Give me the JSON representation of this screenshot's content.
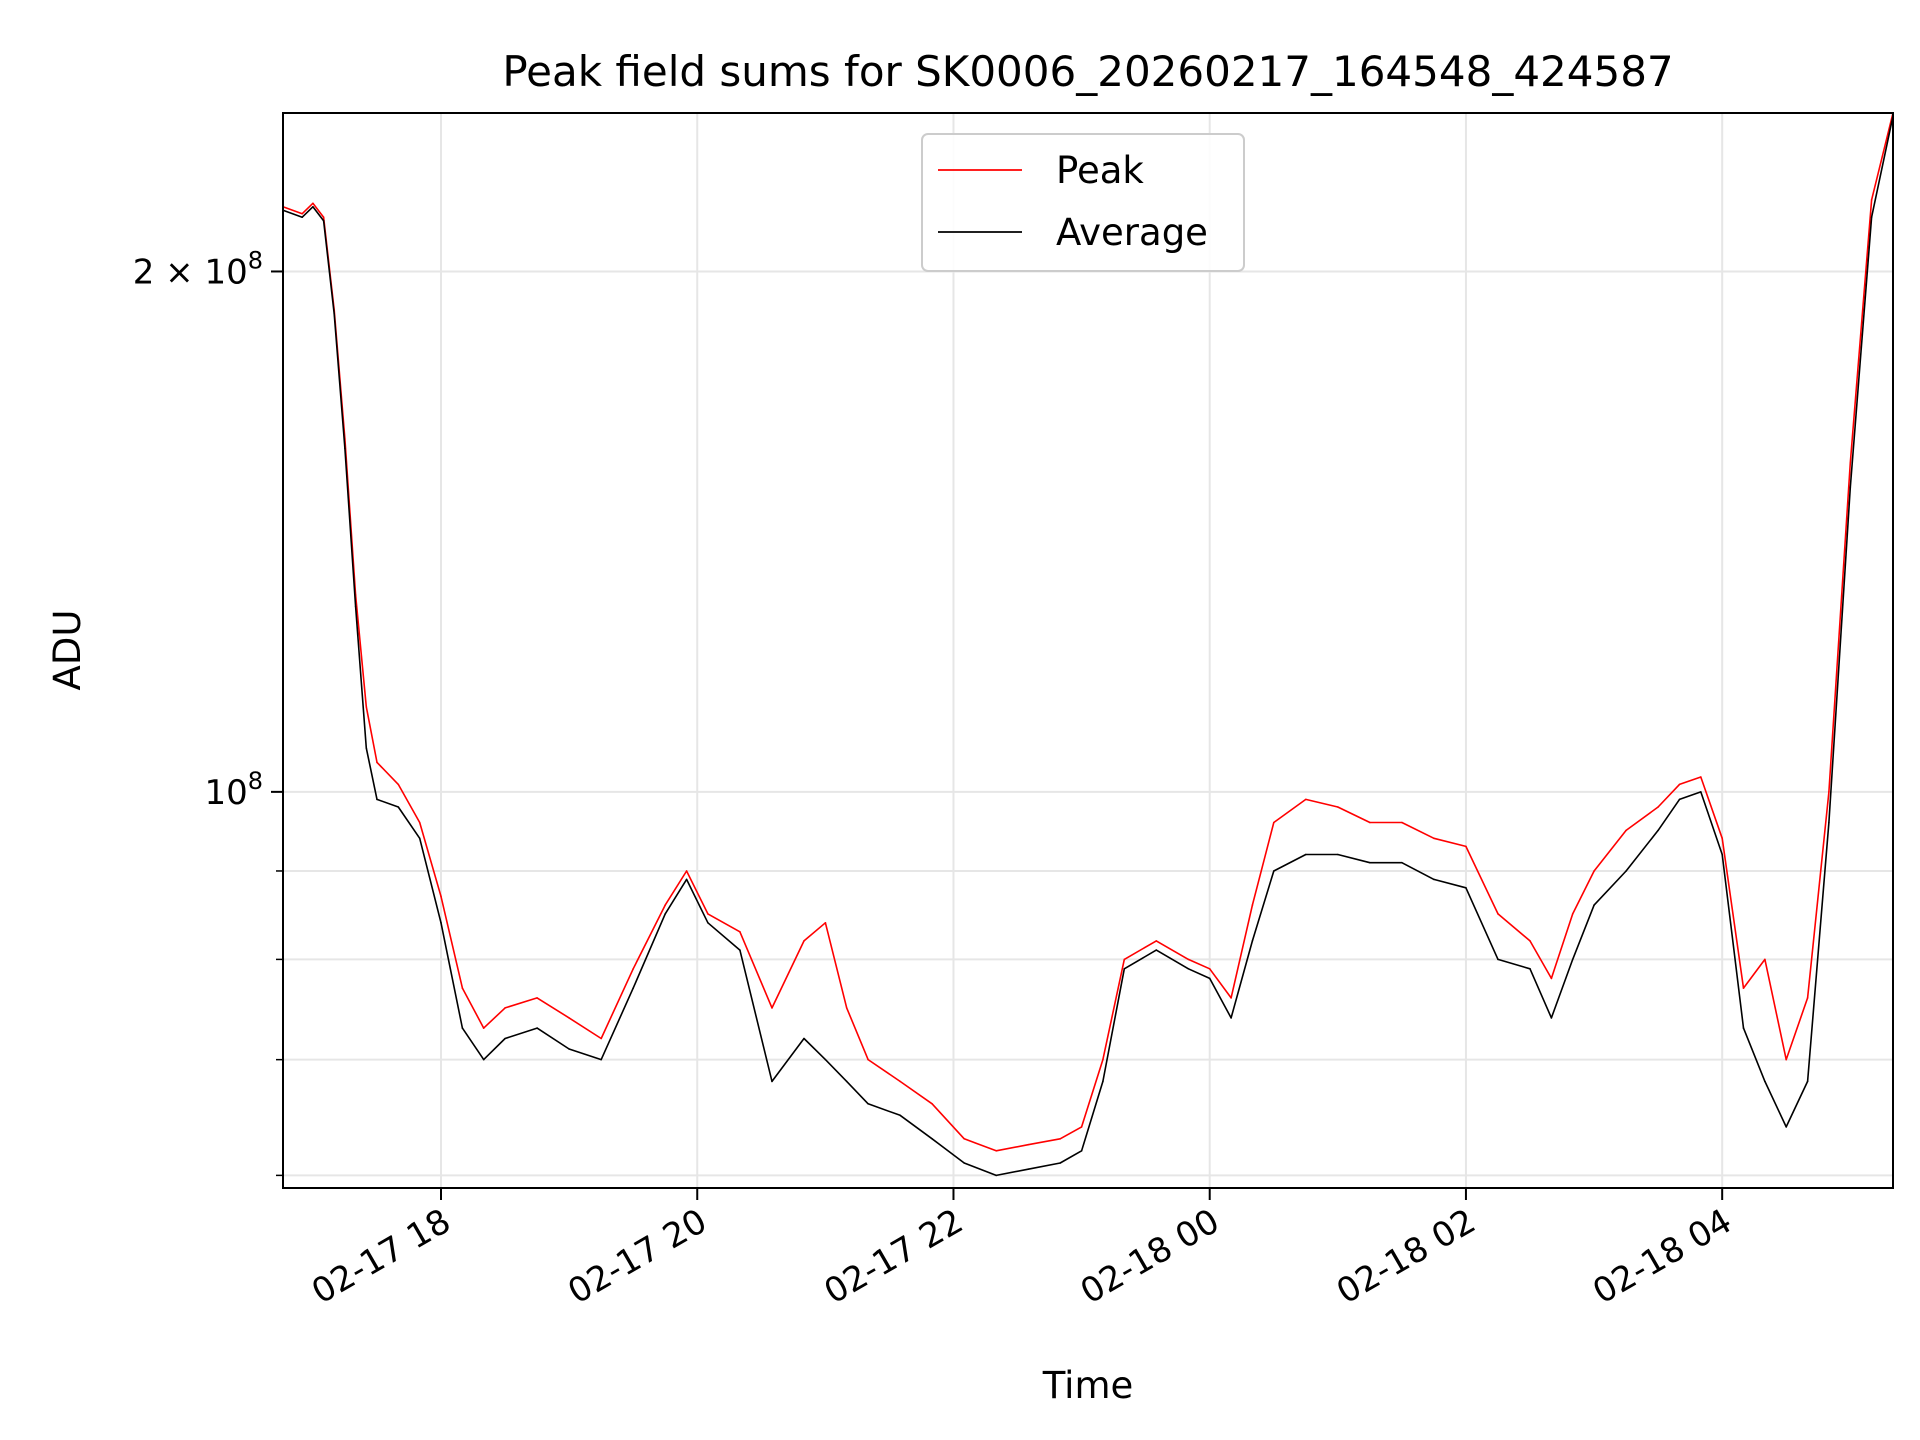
{
  "chart_data": {
    "type": "line",
    "title": "Peak field sums for SK0006_20260217_164548_424587",
    "xlabel": "Time",
    "ylabel": "ADU",
    "y_scale": "log",
    "grid": true,
    "legend_position": "top-center",
    "xlim": [
      "02-17 16:46",
      "02-18 05:20"
    ],
    "ylim": [
      59000000,
      247000000
    ],
    "x_ticks": [
      "02-17 18",
      "02-17 20",
      "02-17 22",
      "02-18 00",
      "02-18 02",
      "02-18 04"
    ],
    "y_major_ticks": [
      {
        "value": 100000000,
        "base": "10",
        "exp": "8",
        "coef": ""
      },
      {
        "value": 200000000,
        "base": "10",
        "exp": "8",
        "coef": "2"
      }
    ],
    "y_minor_gridlines": [
      60000000,
      70000000,
      80000000,
      90000000
    ],
    "series": [
      {
        "name": "Peak",
        "color": "#ff0000",
        "x": [
          "02-17 16:46",
          "02-17 16:55",
          "02-17 17:00",
          "02-17 17:05",
          "02-17 17:10",
          "02-17 17:15",
          "02-17 17:20",
          "02-17 17:25",
          "02-17 17:30",
          "02-17 17:40",
          "02-17 17:50",
          "02-17 18:00",
          "02-17 18:10",
          "02-17 18:20",
          "02-17 18:30",
          "02-17 18:45",
          "02-17 19:00",
          "02-17 19:15",
          "02-17 19:30",
          "02-17 19:45",
          "02-17 19:55",
          "02-17 20:05",
          "02-17 20:20",
          "02-17 20:35",
          "02-17 20:50",
          "02-17 21:00",
          "02-17 21:10",
          "02-17 21:20",
          "02-17 21:35",
          "02-17 21:50",
          "02-17 22:05",
          "02-17 22:20",
          "02-17 22:35",
          "02-17 22:50",
          "02-17 23:00",
          "02-17 23:10",
          "02-17 23:20",
          "02-17 23:35",
          "02-17 23:50",
          "02-18 00:00",
          "02-18 00:10",
          "02-18 00:20",
          "02-18 00:30",
          "02-18 00:45",
          "02-18 01:00",
          "02-18 01:15",
          "02-18 01:30",
          "02-18 01:45",
          "02-18 02:00",
          "02-18 02:15",
          "02-18 02:30",
          "02-18 02:40",
          "02-18 02:50",
          "02-18 03:00",
          "02-18 03:15",
          "02-18 03:30",
          "02-18 03:40",
          "02-18 03:50",
          "02-18 04:00",
          "02-18 04:10",
          "02-18 04:20",
          "02-18 04:30",
          "02-18 04:40",
          "02-18 04:50",
          "02-18 05:00",
          "02-18 05:10",
          "02-18 05:20"
        ],
        "values": [
          218000000,
          216000000,
          219000000,
          215000000,
          190000000,
          160000000,
          130000000,
          112000000,
          104000000,
          101000000,
          96000000,
          87000000,
          77000000,
          73000000,
          75000000,
          76000000,
          74000000,
          72000000,
          79000000,
          86000000,
          90000000,
          85000000,
          83000000,
          75000000,
          82000000,
          84000000,
          75000000,
          70000000,
          68000000,
          66000000,
          63000000,
          62000000,
          62500000,
          63000000,
          64000000,
          70000000,
          80000000,
          82000000,
          80000000,
          79000000,
          76000000,
          86000000,
          96000000,
          99000000,
          98000000,
          96000000,
          96000000,
          94000000,
          93000000,
          85000000,
          82000000,
          78000000,
          85000000,
          90000000,
          95000000,
          98000000,
          101000000,
          102000000,
          94000000,
          77000000,
          80000000,
          70000000,
          76000000,
          100000000,
          155000000,
          220000000,
          247000000
        ]
      },
      {
        "name": "Average",
        "color": "#000000",
        "x": [
          "02-17 16:46",
          "02-17 16:55",
          "02-17 17:00",
          "02-17 17:05",
          "02-17 17:10",
          "02-17 17:15",
          "02-17 17:20",
          "02-17 17:25",
          "02-17 17:30",
          "02-17 17:40",
          "02-17 17:50",
          "02-17 18:00",
          "02-17 18:10",
          "02-17 18:20",
          "02-17 18:30",
          "02-17 18:45",
          "02-17 19:00",
          "02-17 19:15",
          "02-17 19:30",
          "02-17 19:45",
          "02-17 19:55",
          "02-17 20:05",
          "02-17 20:20",
          "02-17 20:35",
          "02-17 20:50",
          "02-17 21:00",
          "02-17 21:10",
          "02-17 21:20",
          "02-17 21:35",
          "02-17 21:50",
          "02-17 22:05",
          "02-17 22:20",
          "02-17 22:35",
          "02-17 22:50",
          "02-17 23:00",
          "02-17 23:10",
          "02-17 23:20",
          "02-17 23:35",
          "02-17 23:50",
          "02-18 00:00",
          "02-18 00:10",
          "02-18 00:20",
          "02-18 00:30",
          "02-18 00:45",
          "02-18 01:00",
          "02-18 01:15",
          "02-18 01:30",
          "02-18 01:45",
          "02-18 02:00",
          "02-18 02:15",
          "02-18 02:30",
          "02-18 02:40",
          "02-18 02:50",
          "02-18 03:00",
          "02-18 03:15",
          "02-18 03:30",
          "02-18 03:40",
          "02-18 03:50",
          "02-18 04:00",
          "02-18 04:10",
          "02-18 04:20",
          "02-18 04:30",
          "02-18 04:40",
          "02-18 04:50",
          "02-18 05:00",
          "02-18 05:10",
          "02-18 05:20"
        ],
        "values": [
          217000000,
          215000000,
          218000000,
          214000000,
          189000000,
          158000000,
          128000000,
          106000000,
          99000000,
          98000000,
          94000000,
          84000000,
          73000000,
          70000000,
          72000000,
          73000000,
          71000000,
          70000000,
          77000000,
          85000000,
          89000000,
          84000000,
          81000000,
          68000000,
          72000000,
          70000000,
          68000000,
          66000000,
          65000000,
          63000000,
          61000000,
          60000000,
          60500000,
          61000000,
          62000000,
          68000000,
          79000000,
          81000000,
          79000000,
          78000000,
          74000000,
          82000000,
          90000000,
          92000000,
          92000000,
          91000000,
          91000000,
          89000000,
          88000000,
          80000000,
          79000000,
          74000000,
          80000000,
          86000000,
          90000000,
          95000000,
          99000000,
          100000000,
          92000000,
          73000000,
          68000000,
          64000000,
          68000000,
          96000000,
          150000000,
          215000000,
          246000000
        ]
      }
    ]
  }
}
